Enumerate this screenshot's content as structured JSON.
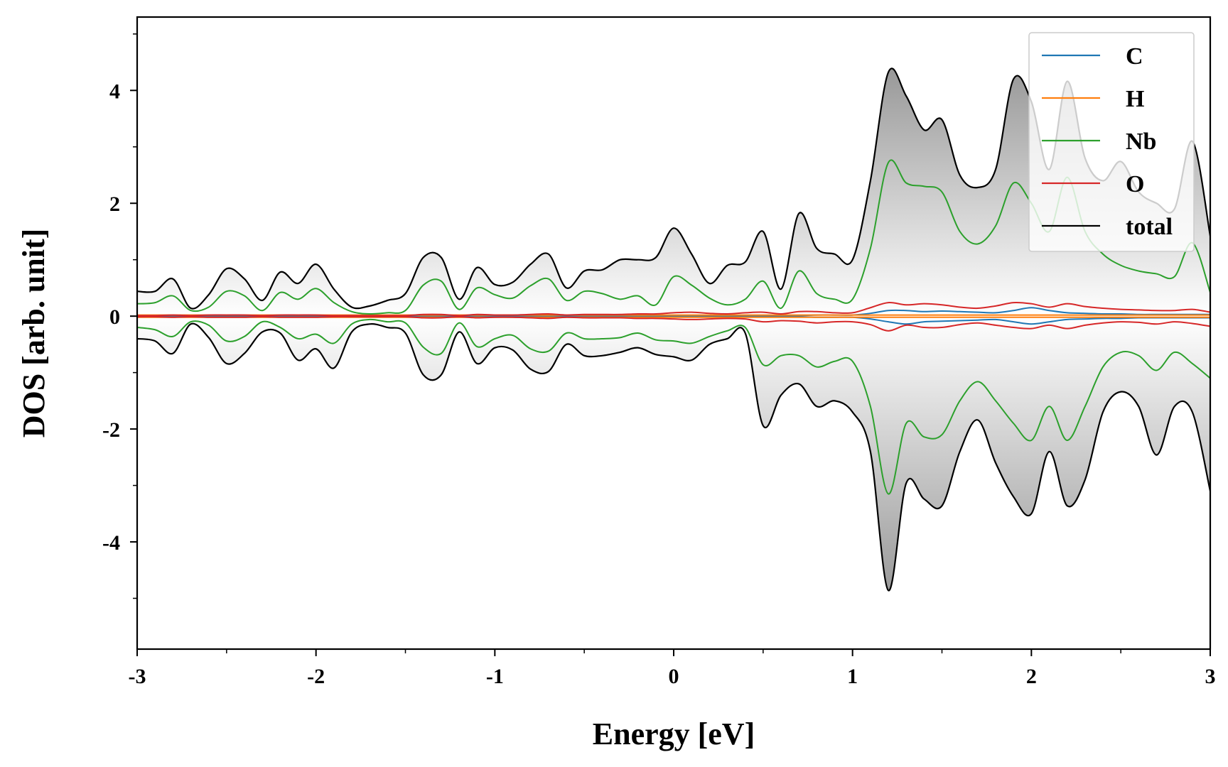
{
  "chart_data": {
    "type": "line",
    "xlabel": "Energy [eV]",
    "ylabel": "DOS [arb. unit]",
    "xlim": [
      -3,
      3
    ],
    "ylim": [
      -5.9,
      5.3
    ],
    "x_ticks": [
      -3,
      -2,
      -1,
      0,
      1,
      2,
      3
    ],
    "x_tick_labels": [
      "-3",
      "-2",
      "-1",
      "0",
      "1",
      "2",
      "3"
    ],
    "y_ticks": [
      4,
      2,
      0,
      -2,
      -4
    ],
    "y_tick_labels": [
      "4",
      "2",
      "0",
      "-2",
      "-4"
    ],
    "grid": false,
    "legend_position": "top-right",
    "fill": "total DOS filled to zero with vertical gray gradient",
    "x": [
      -3.0,
      -2.9,
      -2.8,
      -2.7,
      -2.6,
      -2.5,
      -2.4,
      -2.3,
      -2.2,
      -2.1,
      -2.0,
      -1.9,
      -1.8,
      -1.7,
      -1.6,
      -1.5,
      -1.4,
      -1.3,
      -1.2,
      -1.1,
      -1.0,
      -0.9,
      -0.8,
      -0.7,
      -0.6,
      -0.5,
      -0.4,
      -0.3,
      -0.2,
      -0.1,
      0.0,
      0.1,
      0.2,
      0.3,
      0.4,
      0.5,
      0.6,
      0.7,
      0.8,
      0.9,
      1.0,
      1.1,
      1.2,
      1.3,
      1.4,
      1.5,
      1.6,
      1.7,
      1.8,
      1.9,
      2.0,
      2.1,
      2.2,
      2.3,
      2.4,
      2.5,
      2.6,
      2.7,
      2.8,
      2.9,
      3.0
    ],
    "series": [
      {
        "name": "C",
        "color": "#1f77b4",
        "up": [
          0.01,
          0.01,
          0.01,
          0.01,
          0.01,
          0.01,
          0.01,
          0.01,
          0.01,
          0.01,
          0.01,
          0.01,
          0.01,
          0.01,
          0.01,
          0.01,
          0.01,
          0.01,
          0.01,
          0.01,
          0.01,
          0.01,
          0.01,
          0.01,
          0.01,
          0.01,
          0.01,
          0.01,
          0.01,
          0.01,
          0.01,
          0.01,
          0.01,
          0.01,
          0.01,
          0.01,
          0.01,
          0.01,
          0.02,
          0.02,
          0.02,
          0.05,
          0.1,
          0.1,
          0.08,
          0.09,
          0.08,
          0.07,
          0.06,
          0.1,
          0.15,
          0.1,
          0.06,
          0.05,
          0.04,
          0.04,
          0.03,
          0.03,
          0.03,
          0.03,
          0.03
        ],
        "down": [
          -0.01,
          -0.01,
          -0.01,
          -0.01,
          -0.01,
          -0.01,
          -0.01,
          -0.01,
          -0.01,
          -0.01,
          -0.01,
          -0.01,
          -0.01,
          -0.01,
          -0.01,
          -0.01,
          -0.01,
          -0.01,
          -0.01,
          -0.01,
          -0.01,
          -0.01,
          -0.01,
          -0.01,
          -0.01,
          -0.01,
          -0.01,
          -0.01,
          -0.01,
          -0.01,
          -0.01,
          -0.01,
          -0.01,
          -0.01,
          -0.01,
          -0.01,
          -0.01,
          -0.01,
          -0.02,
          -0.02,
          -0.02,
          -0.05,
          -0.1,
          -0.14,
          -0.1,
          -0.09,
          -0.08,
          -0.07,
          -0.06,
          -0.1,
          -0.14,
          -0.1,
          -0.06,
          -0.05,
          -0.04,
          -0.04,
          -0.03,
          -0.03,
          -0.03,
          -0.03,
          -0.03
        ]
      },
      {
        "name": "H",
        "color": "#ff7f0e",
        "up": [
          0.02,
          0.02,
          0.02,
          0.02,
          0.02,
          0.02,
          0.02,
          0.02,
          0.02,
          0.02,
          0.02,
          0.02,
          0.02,
          0.02,
          0.02,
          0.02,
          0.02,
          0.02,
          0.02,
          0.02,
          0.02,
          0.02,
          0.02,
          0.02,
          0.02,
          0.02,
          0.02,
          0.02,
          0.02,
          0.02,
          0.02,
          0.02,
          0.02,
          0.02,
          0.02,
          0.02,
          0.02,
          0.02,
          0.02,
          0.02,
          0.02,
          0.02,
          0.02,
          0.02,
          0.02,
          0.02,
          0.02,
          0.02,
          0.02,
          0.02,
          0.02,
          0.02,
          0.02,
          0.02,
          0.02,
          0.02,
          0.02,
          0.02,
          0.02,
          0.02,
          0.02
        ],
        "down": [
          -0.02,
          -0.02,
          -0.02,
          -0.02,
          -0.02,
          -0.02,
          -0.02,
          -0.02,
          -0.02,
          -0.02,
          -0.02,
          -0.02,
          -0.02,
          -0.02,
          -0.02,
          -0.02,
          -0.02,
          -0.02,
          -0.02,
          -0.02,
          -0.02,
          -0.02,
          -0.02,
          -0.02,
          -0.02,
          -0.02,
          -0.02,
          -0.02,
          -0.02,
          -0.02,
          -0.02,
          -0.02,
          -0.02,
          -0.02,
          -0.02,
          -0.02,
          -0.02,
          -0.02,
          -0.02,
          -0.02,
          -0.02,
          -0.02,
          -0.02,
          -0.02,
          -0.02,
          -0.02,
          -0.02,
          -0.02,
          -0.02,
          -0.02,
          -0.02,
          -0.02,
          -0.02,
          -0.02,
          -0.02,
          -0.02,
          -0.02,
          -0.02,
          -0.02,
          -0.02,
          -0.02
        ]
      },
      {
        "name": "Nb",
        "color": "#2ca02c",
        "up": [
          0.22,
          0.24,
          0.36,
          0.1,
          0.16,
          0.44,
          0.36,
          0.1,
          0.42,
          0.3,
          0.49,
          0.24,
          0.08,
          0.04,
          0.06,
          0.1,
          0.55,
          0.62,
          0.12,
          0.5,
          0.38,
          0.32,
          0.54,
          0.66,
          0.28,
          0.44,
          0.4,
          0.3,
          0.36,
          0.2,
          0.7,
          0.55,
          0.32,
          0.2,
          0.3,
          0.62,
          0.14,
          0.8,
          0.4,
          0.3,
          0.3,
          1.2,
          2.72,
          2.36,
          2.3,
          2.2,
          1.5,
          1.28,
          1.6,
          2.36,
          2.0,
          1.5,
          2.46,
          1.5,
          1.1,
          0.9,
          0.8,
          0.75,
          0.7,
          1.3,
          0.42
        ],
        "down": [
          -0.2,
          -0.24,
          -0.36,
          -0.1,
          -0.16,
          -0.44,
          -0.36,
          -0.1,
          -0.2,
          -0.4,
          -0.32,
          -0.48,
          -0.14,
          -0.06,
          -0.1,
          -0.12,
          -0.55,
          -0.66,
          -0.12,
          -0.54,
          -0.4,
          -0.34,
          -0.58,
          -0.62,
          -0.3,
          -0.4,
          -0.4,
          -0.38,
          -0.3,
          -0.42,
          -0.44,
          -0.48,
          -0.36,
          -0.26,
          -0.2,
          -0.86,
          -0.7,
          -0.7,
          -0.9,
          -0.8,
          -0.8,
          -1.6,
          -3.15,
          -1.9,
          -2.14,
          -2.1,
          -1.5,
          -1.16,
          -1.5,
          -1.9,
          -2.2,
          -1.6,
          -2.2,
          -1.6,
          -0.9,
          -0.64,
          -0.7,
          -0.96,
          -0.64,
          -0.84,
          -1.1
        ]
      },
      {
        "name": "O",
        "color": "#d62728",
        "up": [
          0.01,
          0.01,
          0.02,
          0.01,
          0.02,
          0.02,
          0.02,
          0.01,
          0.02,
          0.02,
          0.02,
          0.01,
          0.01,
          0.01,
          0.01,
          0.01,
          0.03,
          0.03,
          0.01,
          0.03,
          0.02,
          0.02,
          0.03,
          0.04,
          0.02,
          0.03,
          0.03,
          0.03,
          0.04,
          0.04,
          0.06,
          0.07,
          0.05,
          0.04,
          0.06,
          0.07,
          0.04,
          0.08,
          0.08,
          0.06,
          0.06,
          0.15,
          0.24,
          0.2,
          0.22,
          0.2,
          0.16,
          0.14,
          0.18,
          0.24,
          0.22,
          0.16,
          0.22,
          0.17,
          0.14,
          0.12,
          0.11,
          0.1,
          0.1,
          0.12,
          0.07
        ],
        "down": [
          -0.01,
          -0.01,
          -0.02,
          -0.01,
          -0.02,
          -0.02,
          -0.02,
          -0.01,
          -0.02,
          -0.02,
          -0.02,
          -0.01,
          -0.01,
          -0.01,
          -0.01,
          -0.01,
          -0.03,
          -0.03,
          -0.01,
          -0.03,
          -0.02,
          -0.02,
          -0.03,
          -0.04,
          -0.02,
          -0.03,
          -0.03,
          -0.03,
          -0.04,
          -0.04,
          -0.05,
          -0.06,
          -0.05,
          -0.04,
          -0.05,
          -0.1,
          -0.08,
          -0.09,
          -0.12,
          -0.1,
          -0.1,
          -0.15,
          -0.26,
          -0.16,
          -0.2,
          -0.2,
          -0.15,
          -0.12,
          -0.16,
          -0.2,
          -0.22,
          -0.16,
          -0.22,
          -0.16,
          -0.12,
          -0.1,
          -0.11,
          -0.14,
          -0.1,
          -0.13,
          -0.18
        ]
      },
      {
        "name": "total",
        "color": "#000000",
        "up": [
          0.44,
          0.44,
          0.66,
          0.14,
          0.38,
          0.84,
          0.66,
          0.28,
          0.78,
          0.58,
          0.92,
          0.48,
          0.16,
          0.18,
          0.28,
          0.4,
          1.04,
          1.04,
          0.3,
          0.86,
          0.56,
          0.6,
          0.92,
          1.1,
          0.5,
          0.8,
          0.82,
          1.0,
          1.0,
          1.04,
          1.56,
          1.1,
          0.58,
          0.9,
          0.96,
          1.5,
          0.48,
          1.82,
          1.2,
          1.1,
          1.0,
          2.4,
          4.32,
          3.9,
          3.3,
          3.48,
          2.5,
          2.28,
          2.6,
          4.2,
          3.8,
          2.6,
          4.16,
          2.8,
          2.4,
          2.74,
          2.2,
          2.0,
          1.9,
          3.1,
          1.42
        ],
        "down": [
          -0.4,
          -0.44,
          -0.66,
          -0.14,
          -0.38,
          -0.84,
          -0.66,
          -0.28,
          -0.3,
          -0.78,
          -0.58,
          -0.92,
          -0.28,
          -0.14,
          -0.2,
          -0.3,
          -1.04,
          -1.04,
          -0.28,
          -0.84,
          -0.56,
          -0.6,
          -0.94,
          -0.98,
          -0.5,
          -0.7,
          -0.7,
          -0.64,
          -0.56,
          -0.68,
          -0.72,
          -0.78,
          -0.5,
          -0.4,
          -0.3,
          -1.94,
          -1.4,
          -1.2,
          -1.6,
          -1.5,
          -1.7,
          -2.4,
          -4.86,
          -2.96,
          -3.24,
          -3.36,
          -2.4,
          -1.84,
          -2.6,
          -3.2,
          -3.5,
          -2.4,
          -3.36,
          -2.9,
          -1.7,
          -1.34,
          -1.6,
          -2.46,
          -1.6,
          -1.7,
          -3.1
        ]
      }
    ]
  }
}
